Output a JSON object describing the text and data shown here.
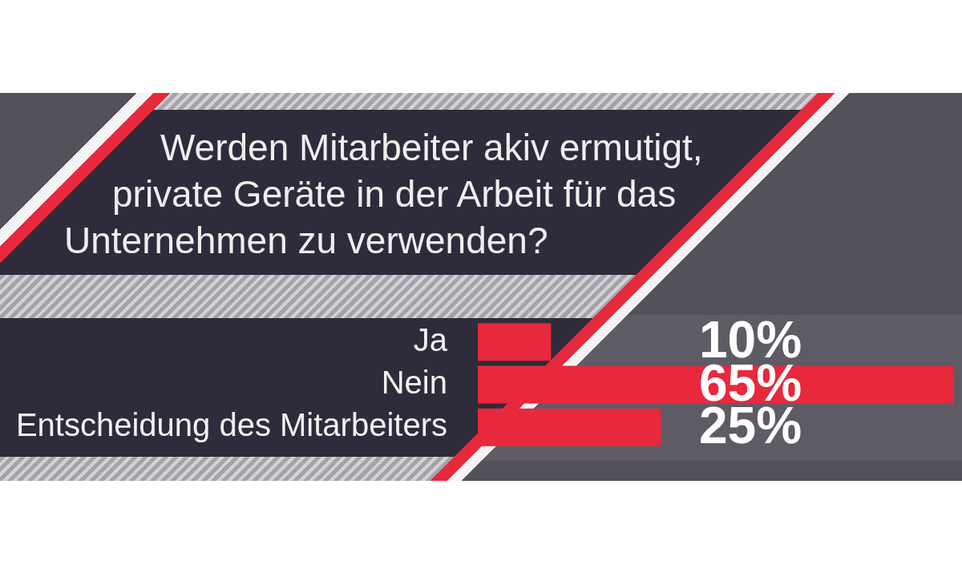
{
  "chart_data": {
    "type": "bar",
    "orientation": "horizontal",
    "title": "Werden Mitarbeiter akiv ermutigt, private Geräte in der Arbeit für das Unternehmen zu verwenden?",
    "categories": [
      "Ja",
      "Nein",
      "Entscheidung des Mitarbeiters"
    ],
    "values": [
      10,
      65,
      25
    ],
    "value_labels": [
      "10%",
      "65%",
      "25%"
    ],
    "color": "#e8283c",
    "xlim": [
      0,
      65
    ],
    "tick_labels": "y"
  }
}
